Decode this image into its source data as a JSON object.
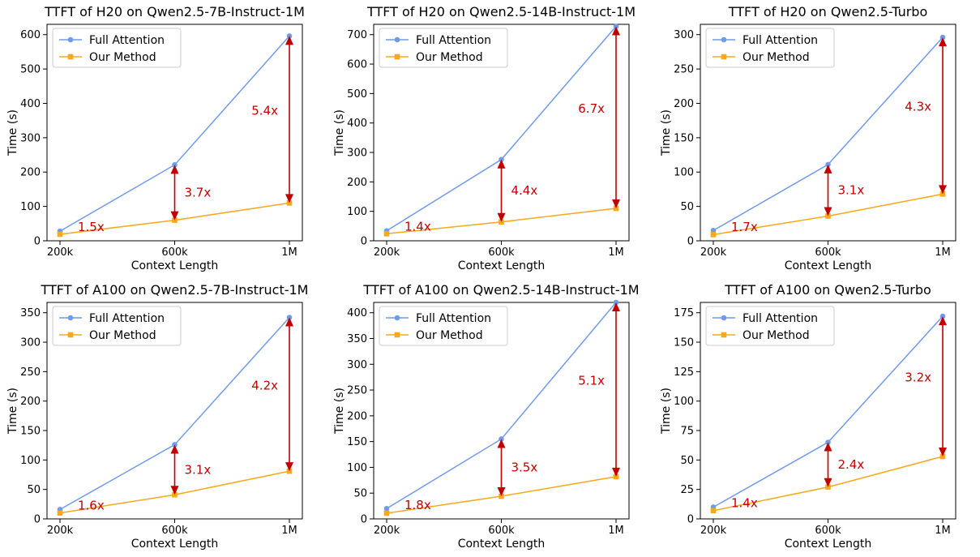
{
  "legend": {
    "full_attention": "Full Attention",
    "our_method": "Our Method"
  },
  "colors": {
    "full_attention": "#6f9be8",
    "our_method": "#f7a81b",
    "annotation": "#c00000"
  },
  "chart_data": [
    {
      "type": "line",
      "title": "TTFT of H20 on Qwen2.5-7B-Instruct-1M",
      "xlabel": "Context Length",
      "ylabel": "Time (s)",
      "categories": [
        "200k",
        "600k",
        "1M"
      ],
      "ylim": [
        0,
        600
      ],
      "yticks": [
        0,
        100,
        200,
        300,
        400,
        500,
        600
      ],
      "series": [
        {
          "name": "Full Attention",
          "values": [
            28,
            221,
            596
          ]
        },
        {
          "name": "Our Method",
          "values": [
            19,
            60,
            110
          ]
        }
      ],
      "annotations": [
        "1.5x",
        "3.7x",
        "5.4x"
      ],
      "legend_position": "upper left",
      "grid": false
    },
    {
      "type": "line",
      "title": "TTFT of H20 on Qwen2.5-14B-Instruct-1M",
      "xlabel": "Context Length",
      "ylabel": "Time (s)",
      "categories": [
        "200k",
        "600k",
        "1M"
      ],
      "ylim": [
        0,
        700
      ],
      "yticks": [
        0,
        100,
        200,
        300,
        400,
        500,
        600,
        700
      ],
      "series": [
        {
          "name": "Full Attention",
          "values": [
            34,
            276,
            728
          ]
        },
        {
          "name": "Our Method",
          "values": [
            24,
            64,
            110
          ]
        }
      ],
      "annotations": [
        "1.4x",
        "4.4x",
        "6.7x"
      ],
      "legend_position": "upper left",
      "grid": false
    },
    {
      "type": "line",
      "title": "TTFT of H20 on Qwen2.5-Turbo",
      "xlabel": "Context Length",
      "ylabel": "Time (s)",
      "categories": [
        "200k",
        "600k",
        "1M"
      ],
      "ylim": [
        0,
        300
      ],
      "yticks": [
        0,
        50,
        100,
        150,
        200,
        250,
        300
      ],
      "series": [
        {
          "name": "Full Attention",
          "values": [
            15,
            111,
            296
          ]
        },
        {
          "name": "Our Method",
          "values": [
            9,
            36,
            68
          ]
        }
      ],
      "annotations": [
        "1.7x",
        "3.1x",
        "4.3x"
      ],
      "legend_position": "upper left",
      "grid": false
    },
    {
      "type": "line",
      "title": "TTFT of A100 on Qwen2.5-7B-Instruct-1M",
      "xlabel": "Context Length",
      "ylabel": "Time (s)",
      "categories": [
        "200k",
        "600k",
        "1M"
      ],
      "ylim": [
        0,
        350
      ],
      "yticks": [
        0,
        50,
        100,
        150,
        200,
        250,
        300,
        350
      ],
      "series": [
        {
          "name": "Full Attention",
          "values": [
            16,
            126,
            342
          ]
        },
        {
          "name": "Our Method",
          "values": [
            10,
            41,
            81
          ]
        }
      ],
      "annotations": [
        "1.6x",
        "3.1x",
        "4.2x"
      ],
      "legend_position": "upper left",
      "grid": false
    },
    {
      "type": "line",
      "title": "TTFT of A100 on Qwen2.5-14B-Instruct-1M",
      "xlabel": "Context Length",
      "ylabel": "Time (s)",
      "categories": [
        "200k",
        "600k",
        "1M"
      ],
      "ylim": [
        0,
        400
      ],
      "yticks": [
        0,
        50,
        100,
        150,
        200,
        250,
        300,
        350,
        400
      ],
      "series": [
        {
          "name": "Full Attention",
          "values": [
            20,
            155,
            420
          ]
        },
        {
          "name": "Our Method",
          "values": [
            11,
            44,
            82
          ]
        }
      ],
      "annotations": [
        "1.8x",
        "3.5x",
        "5.1x"
      ],
      "legend_position": "upper left",
      "grid": false
    },
    {
      "type": "line",
      "title": "TTFT of A100 on Qwen2.5-Turbo",
      "xlabel": "Context Length",
      "ylabel": "Time (s)",
      "categories": [
        "200k",
        "600k",
        "1M"
      ],
      "ylim": [
        0,
        175
      ],
      "yticks": [
        0,
        25,
        50,
        75,
        100,
        125,
        150,
        175
      ],
      "series": [
        {
          "name": "Full Attention",
          "values": [
            10,
            65,
            172
          ]
        },
        {
          "name": "Our Method",
          "values": [
            7,
            27,
            53
          ]
        }
      ],
      "annotations": [
        "1.4x",
        "2.4x",
        "3.2x"
      ],
      "legend_position": "upper left",
      "grid": false
    }
  ]
}
